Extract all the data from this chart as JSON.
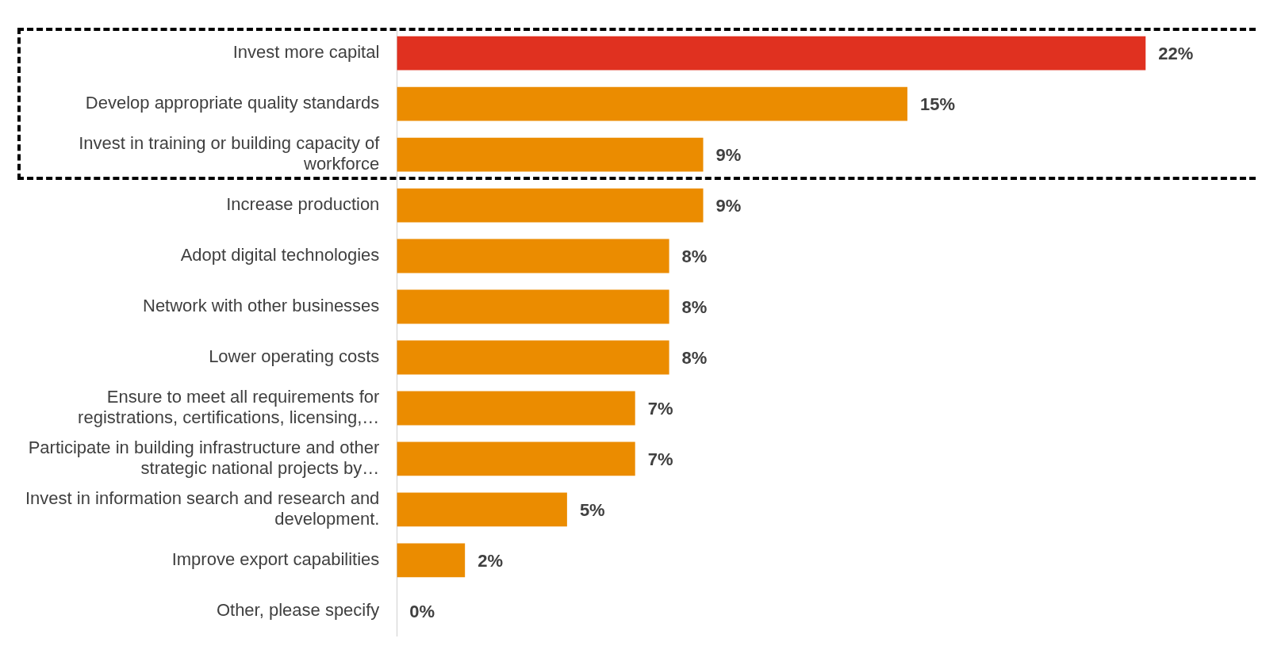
{
  "chart_data": {
    "type": "bar",
    "orientation": "horizontal",
    "categories": [
      "Invest more capital",
      "Develop appropriate quality standards",
      "Invest in training or building capacity of workforce",
      "Increase production",
      "Adopt digital technologies",
      "Network with other businesses",
      "Lower operating costs",
      "Ensure to meet all requirements for registrations, certifications, licensing,…",
      "Participate in building infrastructure and other strategic national projects by…",
      "Invest in information search and research and development.",
      "Improve export capabilities",
      "Other, please specify"
    ],
    "values": [
      22,
      15,
      9,
      9,
      8,
      8,
      8,
      7,
      7,
      5,
      2,
      0
    ],
    "colors": [
      "#e03120",
      "#eb8c00",
      "#eb8c00",
      "#eb8c00",
      "#eb8c00",
      "#eb8c00",
      "#eb8c00",
      "#eb8c00",
      "#eb8c00",
      "#eb8c00",
      "#eb8c00",
      "#eb8c00"
    ],
    "value_labels": [
      "22%",
      "15%",
      "9%",
      "9%",
      "8%",
      "8%",
      "8%",
      "7%",
      "7%",
      "5%",
      "2%",
      "0%"
    ],
    "grid": false,
    "legend": false
  }
}
